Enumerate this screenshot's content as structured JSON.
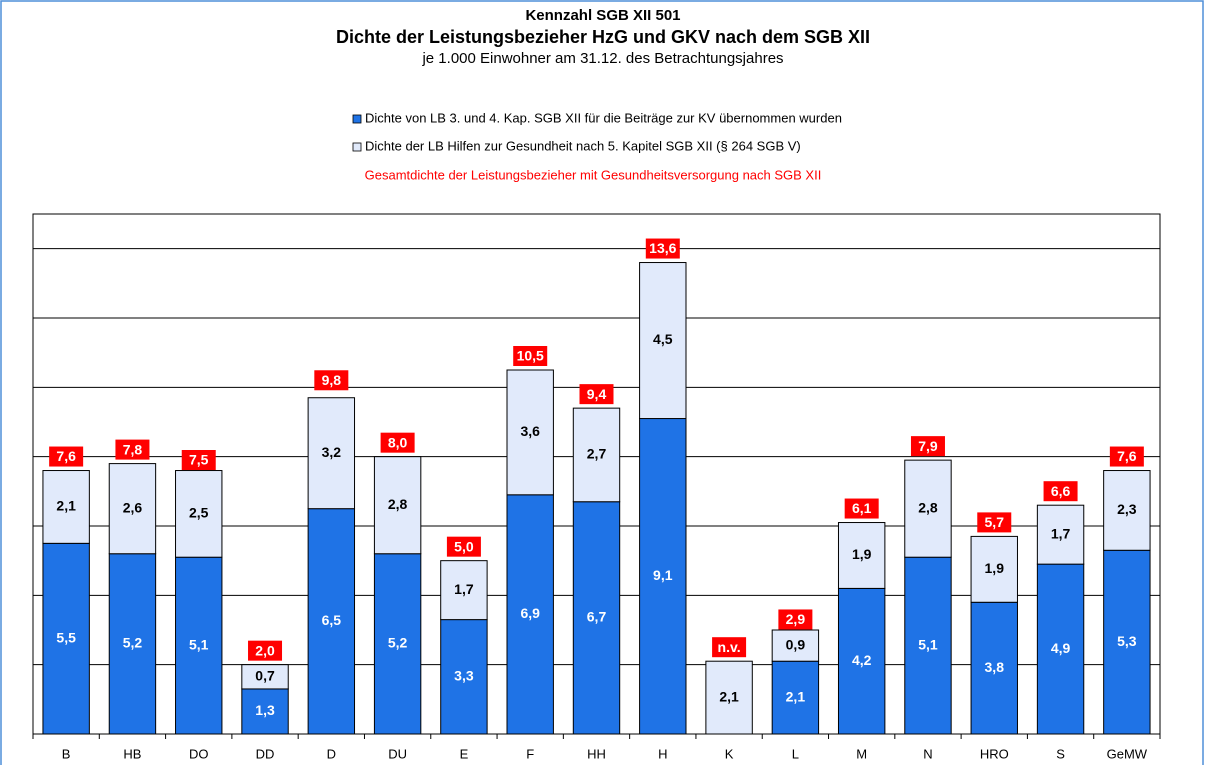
{
  "chart_data": {
    "type": "stacked_bar",
    "title": "Kennzahl SGB XII 501",
    "subtitle": "Dichte der Leistungsbezieher HzG und GKV nach dem SGB XII",
    "note": "je 1.000 Einwohner am 31.12. des Betrachtungsjahres",
    "categories": [
      "B",
      "HB",
      "DO",
      "DD",
      "D",
      "DU",
      "E",
      "F",
      "HH",
      "H",
      "K",
      "L",
      "M",
      "N",
      "HRO",
      "S",
      "GeMW"
    ],
    "series": [
      {
        "name": "Dichte von LB 3. und 4. Kap. SGB XII für die Beiträge zur KV übernommen wurden",
        "color": "#1f73e6",
        "values": [
          5.5,
          5.2,
          5.1,
          1.3,
          6.5,
          5.2,
          3.3,
          6.9,
          6.7,
          9.1,
          null,
          2.1,
          4.2,
          5.1,
          3.8,
          4.9,
          5.3
        ],
        "value_labels": [
          "5,5",
          "5,2",
          "5,1",
          "1,3",
          "6,5",
          "5,2",
          "3,3",
          "6,9",
          "6,7",
          "9,1",
          "n.v.",
          "2,1",
          "4,2",
          "5,1",
          "3,8",
          "4,9",
          "5,3"
        ]
      },
      {
        "name": "Dichte der LB Hilfen zur Gesundheit nach 5. Kapitel SGB XII (§ 264 SGB V)",
        "color": "#e1eafb",
        "values": [
          2.1,
          2.6,
          2.5,
          0.7,
          3.2,
          2.8,
          1.7,
          3.6,
          2.7,
          4.5,
          2.1,
          0.9,
          1.9,
          2.8,
          1.9,
          1.7,
          2.3
        ],
        "value_labels": [
          "2,1",
          "2,6",
          "2,5",
          "0,7",
          "3,2",
          "2,8",
          "1,7",
          "3,6",
          "2,7",
          "4,5",
          "2,1",
          "0,9",
          "1,9",
          "2,8",
          "1,9",
          "1,7",
          "2,3"
        ]
      }
    ],
    "totals": {
      "name": "Gesamtdichte der Leistungsbezieher mit Gesundheitsversorgung nach SGB XII",
      "color": "#ff0000",
      "values": [
        7.6,
        7.8,
        7.5,
        2.0,
        9.8,
        8.0,
        5.0,
        10.5,
        9.4,
        13.6,
        null,
        2.9,
        6.1,
        7.9,
        5.7,
        6.6,
        7.6
      ],
      "value_labels": [
        "7,6",
        "7,8",
        "7,5",
        "2,0",
        "9,8",
        "8,0",
        "5,0",
        "10,5",
        "9,4",
        "13,6",
        "n.v.",
        "2,9",
        "6,1",
        "7,9",
        "5,7",
        "6,6",
        "7,6"
      ]
    },
    "ylim": [
      0,
      15
    ],
    "yticks": [
      0,
      2,
      4,
      6,
      8,
      10,
      12,
      14
    ],
    "grid": true
  }
}
